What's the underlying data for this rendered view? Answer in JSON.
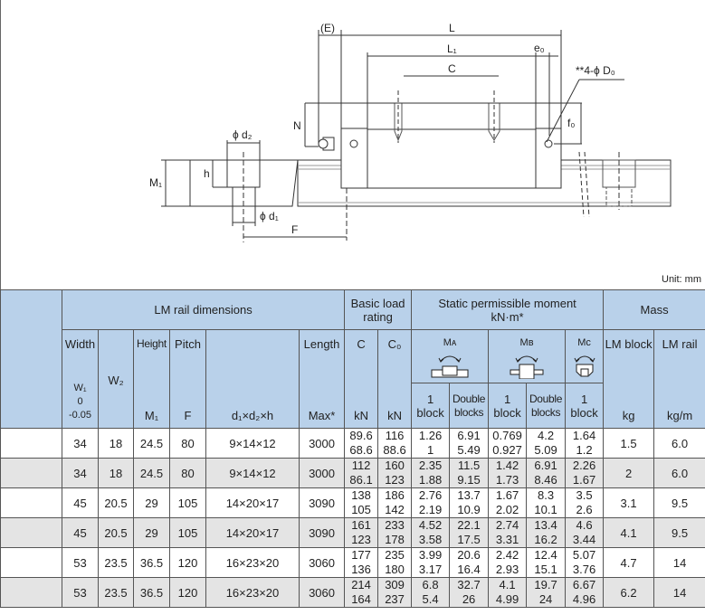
{
  "diagram": {
    "labels": {
      "E": "(E)",
      "L": "L",
      "L1": "L₁",
      "e0": "e₀",
      "C": "C",
      "D0": "**4-ϕ D₀",
      "N": "N",
      "f0": "f₀",
      "d2": "ϕ d₂",
      "h": "h",
      "M1": "M₁",
      "d1": "ϕ d₁",
      "F": "F"
    }
  },
  "unit": "Unit: mm",
  "table": {
    "header": {
      "rail_group": "LM rail dimensions",
      "load_group": "Basic load rating",
      "moment_group": "Static permissible moment",
      "moment_unit": "kN·m*",
      "mass_group": "Mass",
      "width": "Width",
      "w1": "W₁",
      "w1_tol_upper": "0",
      "w1_tol_lower": "-0.05",
      "w2": "W₂",
      "height": "Height",
      "m1": "M₁",
      "pitch": "Pitch",
      "f": "F",
      "bolt": "d₁×d₂×h",
      "length": "Length",
      "length_max": "Max*",
      "c": "C",
      "c_unit": "kN",
      "c0": "C₀",
      "c0_unit": "kN",
      "ma": "Mᴀ",
      "mb": "Mʙ",
      "mc": "Mᴄ",
      "one_block": "1 block",
      "double_blocks": "Double blocks",
      "lm_block": "LM block",
      "lm_block_unit": "kg",
      "lm_rail": "LM rail",
      "lm_rail_unit": "kg/m"
    },
    "rows": [
      {
        "w1": "34",
        "w2": "18",
        "m1": "24.5",
        "f": "80",
        "bolt": "9×14×12",
        "len": "3000",
        "c": [
          "89.6",
          "68.6"
        ],
        "c0": [
          "116",
          "88.6"
        ],
        "ma1": [
          "1.26",
          "1"
        ],
        "ma2": [
          "6.91",
          "5.49"
        ],
        "mb1": [
          "0.769",
          "0.927"
        ],
        "mb2": [
          "4.2",
          "5.09"
        ],
        "mc": [
          "1.64",
          "1.2"
        ],
        "block": "1.5",
        "rail": "6.0"
      },
      {
        "w1": "34",
        "w2": "18",
        "m1": "24.5",
        "f": "80",
        "bolt": "9×14×12",
        "len": "3000",
        "c": [
          "112",
          "86.1"
        ],
        "c0": [
          "160",
          "123"
        ],
        "ma1": [
          "2.35",
          "1.88"
        ],
        "ma2": [
          "11.5",
          "9.15"
        ],
        "mb1": [
          "1.42",
          "1.73"
        ],
        "mb2": [
          "6.91",
          "8.46"
        ],
        "mc": [
          "2.26",
          "1.67"
        ],
        "block": "2",
        "rail": "6.0"
      },
      {
        "w1": "45",
        "w2": "20.5",
        "m1": "29",
        "f": "105",
        "bolt": "14×20×17",
        "len": "3090",
        "c": [
          "138",
          "105"
        ],
        "c0": [
          "186",
          "142"
        ],
        "ma1": [
          "2.76",
          "2.19"
        ],
        "ma2": [
          "13.7",
          "10.9"
        ],
        "mb1": [
          "1.67",
          "2.02"
        ],
        "mb2": [
          "8.3",
          "10.1"
        ],
        "mc": [
          "3.5",
          "2.6"
        ],
        "block": "3.1",
        "rail": "9.5"
      },
      {
        "w1": "45",
        "w2": "20.5",
        "m1": "29",
        "f": "105",
        "bolt": "14×20×17",
        "len": "3090",
        "c": [
          "161",
          "123"
        ],
        "c0": [
          "233",
          "178"
        ],
        "ma1": [
          "4.52",
          "3.58"
        ],
        "ma2": [
          "22.1",
          "17.5"
        ],
        "mb1": [
          "2.74",
          "3.31"
        ],
        "mb2": [
          "13.4",
          "16.2"
        ],
        "mc": [
          "4.6",
          "3.44"
        ],
        "block": "4.1",
        "rail": "9.5"
      },
      {
        "w1": "53",
        "w2": "23.5",
        "m1": "36.5",
        "f": "120",
        "bolt": "16×23×20",
        "len": "3060",
        "c": [
          "177",
          "136"
        ],
        "c0": [
          "235",
          "180"
        ],
        "ma1": [
          "3.99",
          "3.17"
        ],
        "ma2": [
          "20.6",
          "16.4"
        ],
        "mb1": [
          "2.42",
          "2.93"
        ],
        "mb2": [
          "12.4",
          "15.1"
        ],
        "mc": [
          "5.07",
          "3.76"
        ],
        "block": "4.7",
        "rail": "14"
      },
      {
        "w1": "53",
        "w2": "23.5",
        "m1": "36.5",
        "f": "120",
        "bolt": "16×23×20",
        "len": "3060",
        "c": [
          "214",
          "164"
        ],
        "c0": [
          "309",
          "237"
        ],
        "ma1": [
          "6.8",
          "5.4"
        ],
        "ma2": [
          "32.7",
          "26"
        ],
        "mb1": [
          "4.1",
          "4.99"
        ],
        "mb2": [
          "19.7",
          "24"
        ],
        "mc": [
          "6.67",
          "4.96"
        ],
        "block": "6.2",
        "rail": "14"
      }
    ],
    "colors": {
      "header_bg": "#b9d1ea",
      "alt_row_bg": "#e4e4e4",
      "border": "#555555"
    }
  }
}
